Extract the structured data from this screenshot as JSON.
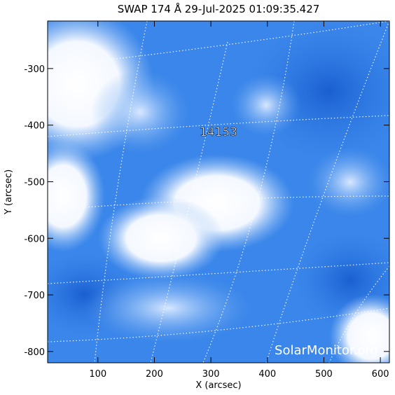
{
  "chart_data": {
    "type": "image",
    "title": "SWAP 174 Å 29-Jul-2025 01:09:35.427",
    "x_label": "X (arcsec)",
    "y_label": "Y (arcsec)",
    "xlim": [
      11,
      616
    ],
    "ylim": [
      -820,
      -216
    ],
    "xticks": [
      100,
      200,
      300,
      400,
      500,
      600
    ],
    "yticks": [
      -300,
      -400,
      -500,
      -600,
      -700,
      -800
    ],
    "annotation": "14153",
    "watermark": "SolarMonitor.org"
  }
}
